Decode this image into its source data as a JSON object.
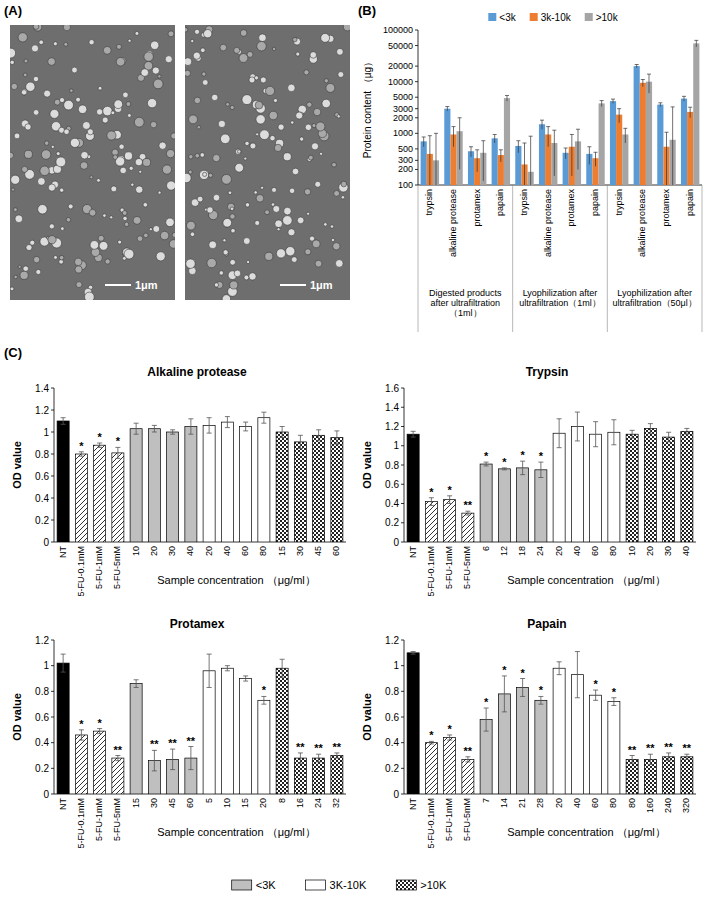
{
  "panel_labels": [
    "(A)",
    "(B)",
    "(C)"
  ],
  "images": [
    {
      "scale_bar": "1μm"
    },
    {
      "scale_bar": "1μm"
    }
  ],
  "figure_legend": [
    "<3K",
    "3K-10K",
    ">10K"
  ],
  "chart_data": [
    {
      "type": "bar",
      "y_label": "Protein content （μg）",
      "categories": [
        "trypsin",
        "alkaline protease",
        "protamex",
        "papain",
        "trypsin",
        "alkaline protease",
        "protamex",
        "papain",
        "trypsin",
        "alkaline protease",
        "protamex",
        "papain"
      ],
      "group_labels": [
        "Digested products after ultrafiltration（1ml）",
        "Lyophilization after ultrafiltration（1ml）",
        "Lyophilization after ultrafiltration（50μl）"
      ],
      "series": [
        {
          "name": "<3k",
          "color": "#5b9bd5",
          "values": [
            700,
            3000,
            450,
            800,
            570,
            1500,
            420,
            400,
            4200,
            20000,
            3600,
            4700
          ],
          "errors": [
            150,
            300,
            100,
            150,
            150,
            300,
            100,
            150,
            400,
            1500,
            300,
            500
          ]
        },
        {
          "name": "3k-10k",
          "color": "#ed7d31",
          "values": [
            400,
            950,
            330,
            380,
            250,
            950,
            550,
            330,
            2300,
            9500,
            550,
            2600
          ],
          "errors": [
            500,
            400,
            150,
            100,
            400,
            400,
            400,
            100,
            700,
            1500,
            500,
            600
          ]
        },
        {
          "name": ">10k",
          "color": "#a5a5a5",
          "values": [
            300,
            1100,
            420,
            4800,
            180,
            650,
            700,
            3800,
            950,
            10000,
            750,
            55000
          ],
          "errors": [
            700,
            900,
            300,
            600,
            700,
            500,
            500,
            500,
            300,
            4000,
            2500,
            8000
          ]
        }
      ],
      "log": "y",
      "ylim": [
        100,
        100000
      ],
      "yticks": [
        100,
        200,
        300,
        500,
        1000,
        2000,
        3000,
        5000,
        10000,
        20000,
        50000,
        100000
      ],
      "legend": "top",
      "grid": false
    },
    {
      "type": "bar",
      "title": "Alkaline protease",
      "y_label": "OD value",
      "x_label": "Sample concentration （μg/ml）",
      "series": [
        {
          "categories": [
            "NT"
          ],
          "values": [
            1.1
          ],
          "errors": [
            0.03
          ],
          "significance": [
            null
          ]
        },
        {
          "categories": [
            "5-FU-0.1mM",
            "5-FU-1mM",
            "5-FU-5mM"
          ],
          "values": [
            0.8,
            0.88,
            0.81
          ],
          "errors": [
            0.02,
            0.02,
            0.05
          ],
          "significance": [
            "*",
            "*",
            "*"
          ]
        },
        {
          "categories": [
            "10",
            "20",
            "30",
            "40"
          ],
          "values": [
            1.03,
            1.03,
            1.0,
            1.05
          ],
          "errors": [
            0.05,
            0.03,
            0.02,
            0.07
          ],
          "significance": [
            null,
            null,
            null,
            null
          ]
        },
        {
          "categories": [
            "20",
            "40",
            "60",
            "80"
          ],
          "values": [
            1.06,
            1.09,
            1.05,
            1.13
          ],
          "errors": [
            0.07,
            0.05,
            0.04,
            0.05
          ],
          "significance": [
            null,
            null,
            null,
            null
          ]
        },
        {
          "categories": [
            "15",
            "30",
            "45",
            "60"
          ],
          "values": [
            1.0,
            0.91,
            0.97,
            0.95
          ],
          "errors": [
            0.05,
            0.06,
            0.05,
            0.06
          ],
          "significance": [
            null,
            null,
            null,
            null
          ]
        }
      ],
      "ylim": [
        0,
        1.4
      ],
      "yticks": [
        0,
        0.2,
        0.4,
        0.6,
        0.8,
        1,
        1.2,
        1.4
      ],
      "grid": false
    },
    {
      "type": "bar",
      "title": "Trypsin",
      "y_label": "OD value",
      "x_label": "Sample concentration （μg/ml）",
      "series": [
        {
          "categories": [
            "NT"
          ],
          "values": [
            1.12
          ],
          "errors": [
            0.03
          ],
          "significance": [
            null
          ]
        },
        {
          "categories": [
            "5-FU-0.1mM",
            "5-FU-1mM",
            "5-FU-5mM"
          ],
          "values": [
            0.42,
            0.44,
            0.3
          ],
          "errors": [
            0.04,
            0.04,
            0.02
          ],
          "significance": [
            "*",
            "*",
            "**"
          ]
        },
        {
          "categories": [
            "6",
            "12",
            "18",
            "24"
          ],
          "values": [
            0.81,
            0.76,
            0.77,
            0.75
          ],
          "errors": [
            0.02,
            0.01,
            0.07,
            0.08
          ],
          "significance": [
            "*",
            "*",
            "*",
            "*"
          ]
        },
        {
          "categories": [
            "20",
            "40",
            "60",
            "80"
          ],
          "values": [
            1.13,
            1.2,
            1.12,
            1.14
          ],
          "errors": [
            0.15,
            0.15,
            0.13,
            0.13
          ],
          "significance": [
            null,
            null,
            null,
            null
          ]
        },
        {
          "categories": [
            "10",
            "20",
            "30",
            "40"
          ],
          "values": [
            1.12,
            1.18,
            1.09,
            1.15
          ],
          "errors": [
            0.04,
            0.05,
            0.05,
            0.03
          ],
          "significance": [
            null,
            null,
            null,
            null
          ]
        }
      ],
      "ylim": [
        0,
        1.6
      ],
      "yticks": [
        0,
        0.2,
        0.4,
        0.6,
        0.8,
        1,
        1.2,
        1.4,
        1.6
      ],
      "grid": false
    },
    {
      "type": "bar",
      "title": "Protamex",
      "y_label": "OD value",
      "x_label": "Sample concentration （μg/ml）",
      "series": [
        {
          "categories": [
            "NT"
          ],
          "values": [
            1.02
          ],
          "errors": [
            0.07
          ],
          "significance": [
            null
          ]
        },
        {
          "categories": [
            "5-FU-0.1mM",
            "5-FU-1mM",
            "5-FU-5mM"
          ],
          "values": [
            0.46,
            0.49,
            0.28
          ],
          "errors": [
            0.04,
            0.02,
            0.02
          ],
          "significance": [
            "*",
            "*",
            "**"
          ]
        },
        {
          "categories": [
            "15",
            "30",
            "45",
            "60"
          ],
          "values": [
            0.86,
            0.26,
            0.27,
            0.28
          ],
          "errors": [
            0.03,
            0.08,
            0.08,
            0.09
          ],
          "significance": [
            null,
            "**",
            "**",
            "**"
          ]
        },
        {
          "categories": [
            "5",
            "10",
            "15",
            "20"
          ],
          "values": [
            0.96,
            0.98,
            0.9,
            0.73
          ],
          "errors": [
            0.13,
            0.02,
            0.02,
            0.03
          ],
          "significance": [
            null,
            null,
            null,
            "*"
          ]
        },
        {
          "categories": [
            "8",
            "16",
            "24",
            "32"
          ],
          "values": [
            0.98,
            0.28,
            0.28,
            0.3
          ],
          "errors": [
            0.07,
            0.04,
            0.03,
            0.02
          ],
          "significance": [
            null,
            "**",
            "**",
            "**"
          ]
        }
      ],
      "ylim": [
        0,
        1.2
      ],
      "yticks": [
        0,
        0.2,
        0.4,
        0.6,
        0.8,
        1,
        1.2
      ],
      "grid": false
    },
    {
      "type": "bar",
      "title": "Papain",
      "y_label": "OD value",
      "x_label": "Sample concentration （μg/ml）",
      "series": [
        {
          "categories": [
            "NT"
          ],
          "values": [
            1.1
          ],
          "errors": [
            0.01
          ],
          "significance": [
            null
          ]
        },
        {
          "categories": [
            "5-FU-0.1mM",
            "5-FU-1mM",
            "5-FU-5mM"
          ],
          "values": [
            0.4,
            0.44,
            0.27
          ],
          "errors": [
            0.01,
            0.02,
            0.02
          ],
          "significance": [
            "*",
            "*",
            "**"
          ]
        },
        {
          "categories": [
            "7",
            "14",
            "21",
            "28"
          ],
          "values": [
            0.58,
            0.78,
            0.83,
            0.73
          ],
          "errors": [
            0.09,
            0.14,
            0.07,
            0.03
          ],
          "significance": [
            "*",
            "*",
            "*",
            "*"
          ]
        },
        {
          "categories": [
            "20",
            "40",
            "60",
            "80"
          ],
          "values": [
            0.98,
            0.93,
            0.77,
            0.72
          ],
          "errors": [
            0.05,
            0.18,
            0.04,
            0.03
          ],
          "significance": [
            null,
            null,
            "*",
            "*"
          ]
        },
        {
          "categories": [
            "80",
            "160",
            "240",
            "320"
          ],
          "values": [
            0.27,
            0.27,
            0.29,
            0.29
          ],
          "errors": [
            0.03,
            0.04,
            0.03,
            0.02
          ],
          "significance": [
            "**",
            "**",
            "**",
            "**"
          ]
        }
      ],
      "ylim": [
        0,
        1.2
      ],
      "yticks": [
        0,
        0.2,
        0.4,
        0.6,
        0.8,
        1,
        1.2
      ],
      "grid": false
    }
  ]
}
